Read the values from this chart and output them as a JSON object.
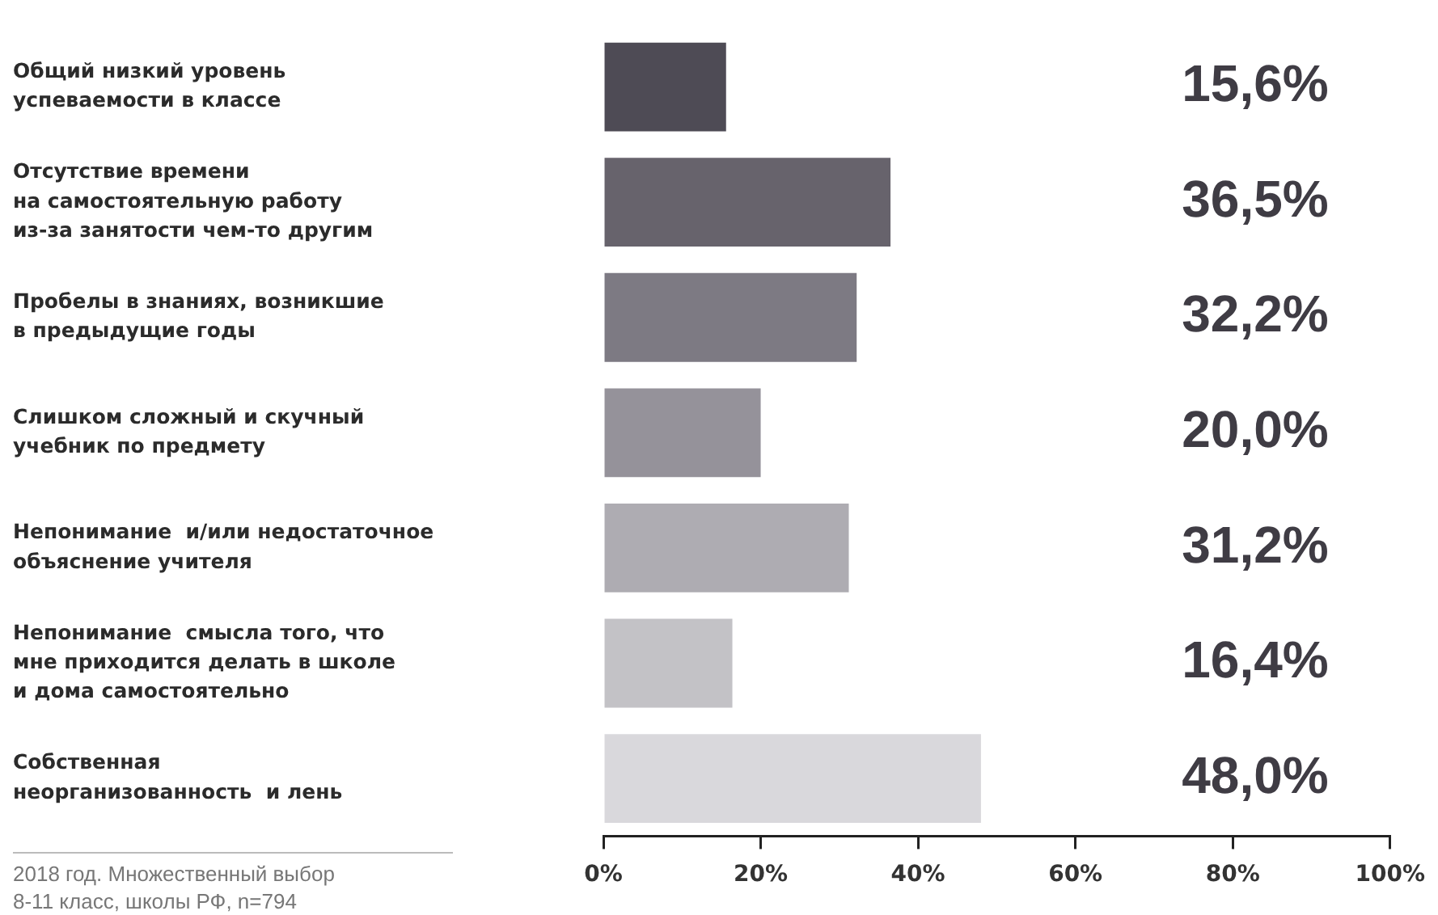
{
  "chart_data": {
    "type": "bar",
    "orientation": "horizontal",
    "categories": [
      "Общий низкий уровень\nуспеваемости в классе",
      "Отсутствие времени\nна самостоятельную работу\nиз-за занятости чем-то другим",
      "Пробелы в знаниях, возникшие\nв предыдущие годы",
      "Слишком сложный и скучный\nучебник по предмету",
      "Непонимание  и/или недостаточное\nобъяснение учителя",
      "Непонимание  смысла того, что\nмне приходится делать в школе\nи дома самостоятельно",
      "Собственная\nнеорганизованность  и лень"
    ],
    "values": [
      15.6,
      36.5,
      32.2,
      20.0,
      31.2,
      16.4,
      48.0
    ],
    "value_labels": [
      "15,6%",
      "36,5%",
      "32,2%",
      "20,0%",
      "31,2%",
      "16,4%",
      "48,0%"
    ],
    "colors": [
      "#4e4b55",
      "#67636c",
      "#7d7a83",
      "#95929a",
      "#aeacb2",
      "#c3c2c6",
      "#d9d8dc"
    ],
    "xlim": [
      0,
      100
    ],
    "xticks": [
      {
        "value": 0,
        "label": "0%"
      },
      {
        "value": 20,
        "label": "20%"
      },
      {
        "value": 40,
        "label": "40%"
      },
      {
        "value": 60,
        "label": "60%"
      },
      {
        "value": 80,
        "label": "80%"
      },
      {
        "value": 100,
        "label": "100%"
      }
    ],
    "grid": false,
    "legend": false,
    "annotations": [
      "2018 год. Множественный выбор\n8-11 класс, школы РФ, n=794"
    ]
  }
}
